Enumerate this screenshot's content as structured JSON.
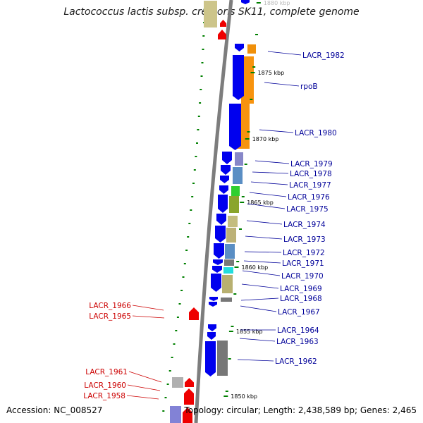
{
  "title": "Lactococcus lactis subsp. cremoris SK11, complete genome",
  "accession_text": "Accession: NC_008527",
  "topology_text": "Topology: circular; Length: 2,438,589 bp; Genes: 2,465",
  "colors": {
    "forward_gene": "#0000ee",
    "reverse_gene": "#ee0000",
    "forward_label": "#000099",
    "reverse_label": "#cc0000",
    "backbone": "#808080",
    "tick": "#008000"
  },
  "ticks": [
    {
      "label": "1880 kbp"
    },
    {
      "label": "1875 kbp"
    },
    {
      "label": "1870 kbp"
    },
    {
      "label": "1865 kbp"
    },
    {
      "label": "1860 kbp"
    },
    {
      "label": "1855 kbp"
    },
    {
      "label": "1850 kbp"
    }
  ],
  "forward_labels": [
    "LACR_1982",
    "rpoB",
    "LACR_1980",
    "LACR_1979",
    "LACR_1978",
    "LACR_1977",
    "LACR_1976",
    "LACR_1975",
    "LACR_1974",
    "LACR_1973",
    "LACR_1972",
    "LACR_1971",
    "LACR_1970",
    "LACR_1969",
    "LACR_1968",
    "LACR_1967",
    "LACR_1964",
    "LACR_1963",
    "LACR_1962"
  ],
  "reverse_labels": [
    "LACR_1966",
    "LACR_1965",
    "LACR_1961",
    "LACR_1960",
    "LACR_1958"
  ]
}
